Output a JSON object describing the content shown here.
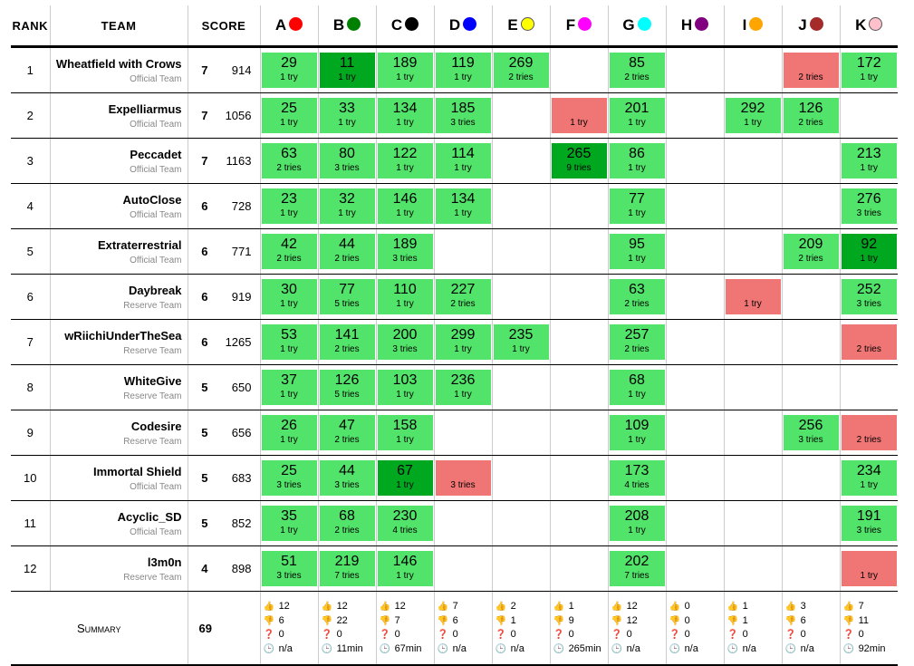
{
  "headers": {
    "rank": "RANK",
    "team": "TEAM",
    "score": "SCORE"
  },
  "problems": [
    {
      "label": "A",
      "color": "#ff0000"
    },
    {
      "label": "B",
      "color": "#008000"
    },
    {
      "label": "C",
      "color": "#000000"
    },
    {
      "label": "D",
      "color": "#0000ff"
    },
    {
      "label": "E",
      "color": "#ffff00"
    },
    {
      "label": "F",
      "color": "#ff00ff"
    },
    {
      "label": "G",
      "color": "#00ffff"
    },
    {
      "label": "H",
      "color": "#800080"
    },
    {
      "label": "I",
      "color": "#ffa500"
    },
    {
      "label": "J",
      "color": "#a52a2a"
    },
    {
      "label": "K",
      "color": "#ffc0cb"
    }
  ],
  "status_colors": {
    "solved": "#52e36a",
    "first": "#00a820",
    "failed": "#f07575"
  },
  "rows": [
    {
      "rank": "1",
      "team": "Wheatfield with Crows",
      "category": "Official Team",
      "solved": "7",
      "penalty": "914",
      "cells": [
        [
          "29",
          "1 try",
          "solved"
        ],
        [
          "11",
          "1 try",
          "first"
        ],
        [
          "189",
          "1 try",
          "solved"
        ],
        [
          "119",
          "1 try",
          "solved"
        ],
        [
          "269",
          "2 tries",
          "solved"
        ],
        null,
        [
          "85",
          "2 tries",
          "solved"
        ],
        null,
        null,
        [
          "",
          "2 tries",
          "failed"
        ],
        [
          "172",
          "1 try",
          "solved"
        ]
      ]
    },
    {
      "rank": "2",
      "team": "Expelliarmus",
      "category": "Official Team",
      "solved": "7",
      "penalty": "1056",
      "cells": [
        [
          "25",
          "1 try",
          "solved"
        ],
        [
          "33",
          "1 try",
          "solved"
        ],
        [
          "134",
          "1 try",
          "solved"
        ],
        [
          "185",
          "3 tries",
          "solved"
        ],
        null,
        [
          "",
          "1 try",
          "failed"
        ],
        [
          "201",
          "1 try",
          "solved"
        ],
        null,
        [
          "292",
          "1 try",
          "solved"
        ],
        [
          "126",
          "2 tries",
          "solved"
        ],
        null
      ]
    },
    {
      "rank": "3",
      "team": "Peccadet",
      "category": "Official Team",
      "solved": "7",
      "penalty": "1163",
      "cells": [
        [
          "63",
          "2 tries",
          "solved"
        ],
        [
          "80",
          "3 tries",
          "solved"
        ],
        [
          "122",
          "1 try",
          "solved"
        ],
        [
          "114",
          "1 try",
          "solved"
        ],
        null,
        [
          "265",
          "9 tries",
          "first"
        ],
        [
          "86",
          "1 try",
          "solved"
        ],
        null,
        null,
        null,
        [
          "213",
          "1 try",
          "solved"
        ]
      ]
    },
    {
      "rank": "4",
      "team": "AutoClose",
      "category": "Official Team",
      "solved": "6",
      "penalty": "728",
      "cells": [
        [
          "23",
          "1 try",
          "solved"
        ],
        [
          "32",
          "1 try",
          "solved"
        ],
        [
          "146",
          "1 try",
          "solved"
        ],
        [
          "134",
          "1 try",
          "solved"
        ],
        null,
        null,
        [
          "77",
          "1 try",
          "solved"
        ],
        null,
        null,
        null,
        [
          "276",
          "3 tries",
          "solved"
        ]
      ]
    },
    {
      "rank": "5",
      "team": "Extraterrestrial",
      "category": "Official Team",
      "solved": "6",
      "penalty": "771",
      "cells": [
        [
          "42",
          "2 tries",
          "solved"
        ],
        [
          "44",
          "2 tries",
          "solved"
        ],
        [
          "189",
          "3 tries",
          "solved"
        ],
        null,
        null,
        null,
        [
          "95",
          "1 try",
          "solved"
        ],
        null,
        null,
        [
          "209",
          "2 tries",
          "solved"
        ],
        [
          "92",
          "1 try",
          "first"
        ]
      ]
    },
    {
      "rank": "6",
      "team": "Daybreak",
      "category": "Reserve Team",
      "solved": "6",
      "penalty": "919",
      "cells": [
        [
          "30",
          "1 try",
          "solved"
        ],
        [
          "77",
          "5 tries",
          "solved"
        ],
        [
          "110",
          "1 try",
          "solved"
        ],
        [
          "227",
          "2 tries",
          "solved"
        ],
        null,
        null,
        [
          "63",
          "2 tries",
          "solved"
        ],
        null,
        [
          "",
          "1 try",
          "failed"
        ],
        null,
        [
          "252",
          "3 tries",
          "solved"
        ]
      ]
    },
    {
      "rank": "7",
      "team": "wRiichiUnderTheSea",
      "category": "Reserve Team",
      "solved": "6",
      "penalty": "1265",
      "cells": [
        [
          "53",
          "1 try",
          "solved"
        ],
        [
          "141",
          "2 tries",
          "solved"
        ],
        [
          "200",
          "3 tries",
          "solved"
        ],
        [
          "299",
          "1 try",
          "solved"
        ],
        [
          "235",
          "1 try",
          "solved"
        ],
        null,
        [
          "257",
          "2 tries",
          "solved"
        ],
        null,
        null,
        null,
        [
          "",
          "2 tries",
          "failed"
        ]
      ]
    },
    {
      "rank": "8",
      "team": "WhiteGive",
      "category": "Reserve Team",
      "solved": "5",
      "penalty": "650",
      "cells": [
        [
          "37",
          "1 try",
          "solved"
        ],
        [
          "126",
          "5 tries",
          "solved"
        ],
        [
          "103",
          "1 try",
          "solved"
        ],
        [
          "236",
          "1 try",
          "solved"
        ],
        null,
        null,
        [
          "68",
          "1 try",
          "solved"
        ],
        null,
        null,
        null,
        null
      ]
    },
    {
      "rank": "9",
      "team": "Codesire",
      "category": "Reserve Team",
      "solved": "5",
      "penalty": "656",
      "cells": [
        [
          "26",
          "1 try",
          "solved"
        ],
        [
          "47",
          "2 tries",
          "solved"
        ],
        [
          "158",
          "1 try",
          "solved"
        ],
        null,
        null,
        null,
        [
          "109",
          "1 try",
          "solved"
        ],
        null,
        null,
        [
          "256",
          "3 tries",
          "solved"
        ],
        [
          "",
          "2 tries",
          "failed"
        ]
      ]
    },
    {
      "rank": "10",
      "team": "Immortal Shield",
      "category": "Official Team",
      "solved": "5",
      "penalty": "683",
      "cells": [
        [
          "25",
          "3 tries",
          "solved"
        ],
        [
          "44",
          "3 tries",
          "solved"
        ],
        [
          "67",
          "1 try",
          "first"
        ],
        [
          "",
          "3 tries",
          "failed"
        ],
        null,
        null,
        [
          "173",
          "4 tries",
          "solved"
        ],
        null,
        null,
        null,
        [
          "234",
          "1 try",
          "solved"
        ]
      ]
    },
    {
      "rank": "11",
      "team": "Acyclic_SD",
      "category": "Official Team",
      "solved": "5",
      "penalty": "852",
      "cells": [
        [
          "35",
          "1 try",
          "solved"
        ],
        [
          "68",
          "2 tries",
          "solved"
        ],
        [
          "230",
          "4 tries",
          "solved"
        ],
        null,
        null,
        null,
        [
          "208",
          "1 try",
          "solved"
        ],
        null,
        null,
        null,
        [
          "191",
          "3 tries",
          "solved"
        ]
      ]
    },
    {
      "rank": "12",
      "team": "l3m0n",
      "category": "Reserve Team",
      "solved": "4",
      "penalty": "898",
      "cells": [
        [
          "51",
          "3 tries",
          "solved"
        ],
        [
          "219",
          "7 tries",
          "solved"
        ],
        [
          "146",
          "1 try",
          "solved"
        ],
        null,
        null,
        null,
        [
          "202",
          "7 tries",
          "solved"
        ],
        null,
        null,
        null,
        [
          "",
          "1 try",
          "failed"
        ]
      ]
    }
  ],
  "summary": {
    "label": "Summary",
    "total": "69",
    "icons": [
      "thumbs-up-icon",
      "thumbs-down-icon",
      "question-icon",
      "clock-icon"
    ],
    "stats": [
      [
        "12",
        "6",
        "0",
        "n/a"
      ],
      [
        "12",
        "22",
        "0",
        "11min"
      ],
      [
        "12",
        "7",
        "0",
        "67min"
      ],
      [
        "7",
        "6",
        "0",
        "n/a"
      ],
      [
        "2",
        "1",
        "0",
        "n/a"
      ],
      [
        "1",
        "9",
        "0",
        "265min"
      ],
      [
        "12",
        "12",
        "0",
        "n/a"
      ],
      [
        "0",
        "0",
        "0",
        "n/a"
      ],
      [
        "1",
        "1",
        "0",
        "n/a"
      ],
      [
        "3",
        "6",
        "0",
        "n/a"
      ],
      [
        "7",
        "11",
        "0",
        "92min"
      ]
    ]
  }
}
